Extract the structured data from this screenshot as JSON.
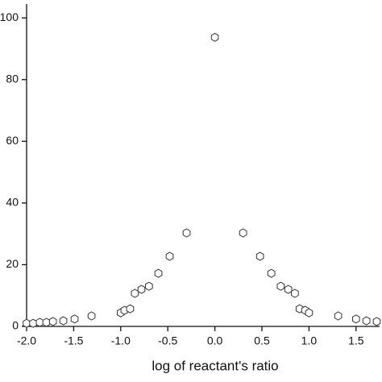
{
  "chart_data": {
    "type": "scatter",
    "x_label": "log of reactant's ratio",
    "x": [
      -2.0,
      -1.93,
      -1.86,
      -1.79,
      -1.72,
      -1.61,
      -1.49,
      -1.31,
      -1.0,
      -0.96,
      -0.9,
      -0.85,
      -0.78,
      -0.7,
      -0.6,
      -0.48,
      -0.3,
      0.0,
      0.3,
      0.48,
      0.6,
      0.7,
      0.78,
      0.85,
      0.9,
      0.96,
      1.0,
      1.31,
      1.5,
      1.61,
      1.72
    ],
    "values": [
      1.0,
      1.0,
      1.3,
      1.3,
      1.6,
      1.8,
      2.4,
      3.4,
      4.4,
      5.2,
      5.7,
      10.7,
      12.0,
      13.0,
      17.2,
      22.7,
      30.3,
      93.7,
      30.3,
      22.7,
      17.2,
      13.0,
      12.0,
      10.7,
      5.7,
      5.2,
      4.4,
      3.4,
      2.4,
      1.8,
      1.6
    ],
    "color": "#333333",
    "xlim": [
      -2.0,
      1.75
    ],
    "xticks": [
      {
        "value": -2.0,
        "label": "-2.0"
      },
      {
        "value": -1.5,
        "label": "-1.5"
      },
      {
        "value": -1.0,
        "label": "-1.0"
      },
      {
        "value": -0.5,
        "label": "-0.5"
      },
      {
        "value": 0.0,
        "label": "0.0"
      },
      {
        "value": 0.5,
        "label": "0.5"
      },
      {
        "value": 1.0,
        "label": "1.0"
      },
      {
        "value": 1.5,
        "label": "1.5"
      }
    ],
    "ylim": [
      0,
      104.5
    ],
    "yticks": [
      0,
      20,
      40,
      60,
      80,
      100
    ]
  }
}
